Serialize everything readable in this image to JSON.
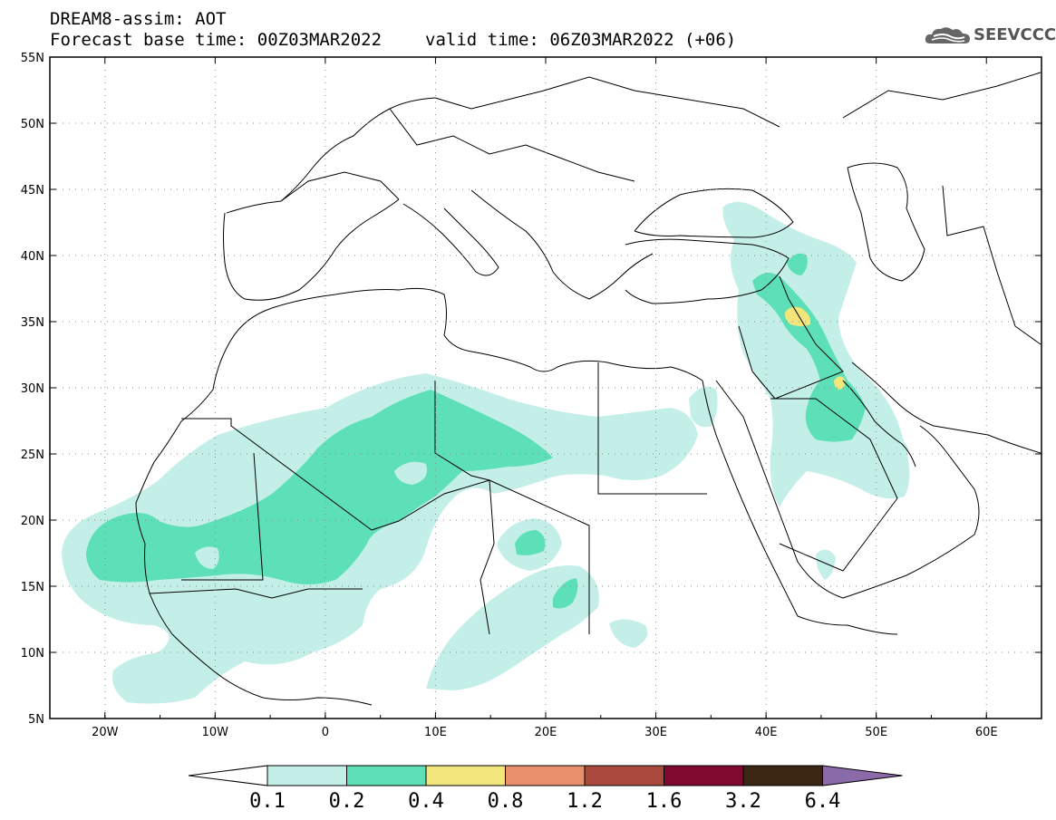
{
  "header": {
    "model_title": "DREAM8-assim: AOT",
    "base_time": "Forecast base time: 00Z03MAR2022",
    "valid_time": "valid time: 06Z03MAR2022 (+06)"
  },
  "logo": {
    "text": "SEEVCCC",
    "icon": "cloud-logo-icon"
  },
  "map": {
    "lat_range": [
      5,
      55
    ],
    "lon_range": [
      -25,
      65
    ],
    "lat_ticks": [
      "5N",
      "10N",
      "15N",
      "20N",
      "25N",
      "30N",
      "35N",
      "40N",
      "45N",
      "50N",
      "55N"
    ],
    "lon_ticks": [
      "20W",
      "10W",
      "0",
      "10E",
      "20E",
      "30E",
      "40E",
      "50E",
      "60E"
    ],
    "grid": "dotted"
  },
  "colorbar": {
    "labels": [
      "0.1",
      "0.2",
      "0.4",
      "0.8",
      "1.2",
      "1.6",
      "3.2",
      "6.4"
    ],
    "colors": [
      "#ffffff",
      "#c4efe8",
      "#5de0b8",
      "#f1e57c",
      "#e98f6b",
      "#a8493c",
      "#7f0a2f",
      "#3b2513",
      "#8b6aa9"
    ]
  }
}
